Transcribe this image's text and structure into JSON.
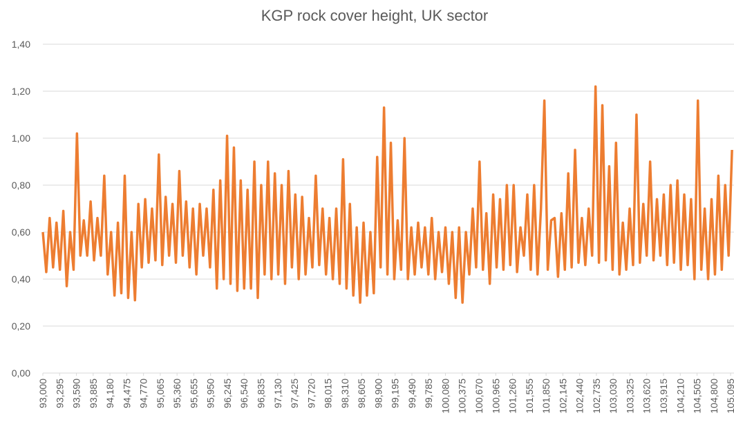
{
  "chart_data": {
    "type": "line",
    "title": "KGP rock cover height, UK sector",
    "x": [
      93000,
      93060,
      93120,
      93180,
      93240,
      93300,
      93360,
      93420,
      93480,
      93540,
      93600,
      93660,
      93720,
      93780,
      93840,
      93900,
      93960,
      94020,
      94080,
      94140,
      94200,
      94260,
      94320,
      94380,
      94440,
      94500,
      94560,
      94620,
      94680,
      94740,
      94800,
      94860,
      94920,
      94980,
      95040,
      95100,
      95160,
      95220,
      95280,
      95340,
      95400,
      95460,
      95520,
      95580,
      95640,
      95700,
      95760,
      95820,
      95880,
      95940,
      96000,
      96060,
      96120,
      96180,
      96240,
      96300,
      96360,
      96420,
      96480,
      96540,
      96600,
      96660,
      96720,
      96780,
      96840,
      96900,
      96960,
      97020,
      97080,
      97140,
      97200,
      97260,
      97320,
      97380,
      97440,
      97500,
      97560,
      97620,
      97680,
      97740,
      97800,
      97860,
      97920,
      97980,
      98040,
      98100,
      98160,
      98220,
      98280,
      98340,
      98400,
      98460,
      98520,
      98580,
      98640,
      98700,
      98760,
      98820,
      98880,
      98940,
      99000,
      99060,
      99120,
      99180,
      99240,
      99300,
      99360,
      99420,
      99480,
      99540,
      99600,
      99660,
      99720,
      99780,
      99840,
      99900,
      99960,
      100020,
      100080,
      100140,
      100200,
      100260,
      100320,
      100380,
      100440,
      100500,
      100560,
      100620,
      100680,
      100740,
      100800,
      100860,
      100920,
      100980,
      101040,
      101100,
      101160,
      101220,
      101280,
      101340,
      101400,
      101460,
      101520,
      101580,
      101640,
      101700,
      101760,
      101820,
      101880,
      101940,
      102000,
      102060,
      102120,
      102180,
      102240,
      102300,
      102360,
      102420,
      102480,
      102540,
      102600,
      102660,
      102720,
      102780,
      102840,
      102900,
      102960,
      103020,
      103080,
      103140,
      103200,
      103260,
      103320,
      103380,
      103440,
      103500,
      103560,
      103620,
      103680,
      103740,
      103800,
      103860,
      103920,
      103980,
      104040,
      104100,
      104160,
      104220,
      104280,
      104340,
      104400,
      104460,
      104520,
      104580,
      104640,
      104700,
      104760,
      104820,
      104880,
      104940,
      105000,
      105060,
      105120
    ],
    "series": [
      {
        "name": "rock cover height",
        "color": "#ed7d31",
        "values": [
          0.6,
          0.43,
          0.66,
          0.45,
          0.64,
          0.44,
          0.69,
          0.37,
          0.6,
          0.44,
          1.02,
          0.5,
          0.65,
          0.5,
          0.73,
          0.48,
          0.66,
          0.5,
          0.84,
          0.42,
          0.6,
          0.33,
          0.64,
          0.34,
          0.84,
          0.32,
          0.6,
          0.31,
          0.72,
          0.45,
          0.74,
          0.47,
          0.7,
          0.48,
          0.93,
          0.46,
          0.75,
          0.5,
          0.72,
          0.47,
          0.86,
          0.5,
          0.73,
          0.45,
          0.7,
          0.42,
          0.72,
          0.5,
          0.7,
          0.45,
          0.78,
          0.36,
          0.82,
          0.4,
          1.01,
          0.38,
          0.96,
          0.35,
          0.82,
          0.36,
          0.78,
          0.36,
          0.9,
          0.32,
          0.8,
          0.42,
          0.9,
          0.4,
          0.85,
          0.42,
          0.8,
          0.38,
          0.86,
          0.45,
          0.76,
          0.4,
          0.75,
          0.42,
          0.66,
          0.45,
          0.84,
          0.46,
          0.7,
          0.42,
          0.66,
          0.4,
          0.7,
          0.38,
          0.91,
          0.36,
          0.72,
          0.33,
          0.62,
          0.3,
          0.64,
          0.33,
          0.6,
          0.34,
          0.92,
          0.45,
          1.13,
          0.42,
          0.98,
          0.4,
          0.65,
          0.44,
          1.0,
          0.4,
          0.62,
          0.42,
          0.64,
          0.45,
          0.62,
          0.42,
          0.66,
          0.4,
          0.6,
          0.43,
          0.62,
          0.38,
          0.6,
          0.32,
          0.62,
          0.3,
          0.6,
          0.42,
          0.7,
          0.45,
          0.9,
          0.44,
          0.68,
          0.38,
          0.76,
          0.45,
          0.74,
          0.44,
          0.8,
          0.46,
          0.8,
          0.43,
          0.62,
          0.5,
          0.76,
          0.44,
          0.8,
          0.42,
          0.7,
          1.16,
          0.44,
          0.65,
          0.66,
          0.41,
          0.68,
          0.44,
          0.85,
          0.45,
          0.95,
          0.47,
          0.66,
          0.46,
          0.7,
          0.5,
          1.22,
          0.47,
          1.14,
          0.48,
          0.88,
          0.44,
          0.98,
          0.42,
          0.64,
          0.44,
          0.7,
          0.46,
          1.1,
          0.47,
          0.72,
          0.5,
          0.9,
          0.48,
          0.74,
          0.5,
          0.76,
          0.46,
          0.8,
          0.47,
          0.82,
          0.44,
          0.76,
          0.46,
          0.74,
          0.4,
          1.16,
          0.44,
          0.7,
          0.4,
          0.74,
          0.42,
          0.84,
          0.44,
          0.8,
          0.5,
          0.95
        ]
      }
    ],
    "xlim": [
      93000,
      105155
    ],
    "xticks": [
      {
        "value": 93000,
        "label": "93,000"
      },
      {
        "value": 93295,
        "label": "93,295"
      },
      {
        "value": 93590,
        "label": "93,590"
      },
      {
        "value": 93885,
        "label": "93,885"
      },
      {
        "value": 94180,
        "label": "94,180"
      },
      {
        "value": 94475,
        "label": "94,475"
      },
      {
        "value": 94770,
        "label": "94,770"
      },
      {
        "value": 95065,
        "label": "95,065"
      },
      {
        "value": 95360,
        "label": "95,360"
      },
      {
        "value": 95655,
        "label": "95,655"
      },
      {
        "value": 95950,
        "label": "95,950"
      },
      {
        "value": 96245,
        "label": "96,245"
      },
      {
        "value": 96540,
        "label": "96,540"
      },
      {
        "value": 96835,
        "label": "96,835"
      },
      {
        "value": 97130,
        "label": "97,130"
      },
      {
        "value": 97425,
        "label": "97,425"
      },
      {
        "value": 97720,
        "label": "97,720"
      },
      {
        "value": 98015,
        "label": "98,015"
      },
      {
        "value": 98310,
        "label": "98,310"
      },
      {
        "value": 98605,
        "label": "98,605"
      },
      {
        "value": 98900,
        "label": "98,900"
      },
      {
        "value": 99195,
        "label": "99,195"
      },
      {
        "value": 99490,
        "label": "99,490"
      },
      {
        "value": 99785,
        "label": "99,785"
      },
      {
        "value": 100080,
        "label": "100,080"
      },
      {
        "value": 100375,
        "label": "100,375"
      },
      {
        "value": 100670,
        "label": "100,670"
      },
      {
        "value": 100965,
        "label": "100,965"
      },
      {
        "value": 101260,
        "label": "101,260"
      },
      {
        "value": 101555,
        "label": "101,555"
      },
      {
        "value": 101850,
        "label": "101,850"
      },
      {
        "value": 102145,
        "label": "102,145"
      },
      {
        "value": 102440,
        "label": "102,440"
      },
      {
        "value": 102735,
        "label": "102,735"
      },
      {
        "value": 103030,
        "label": "103,030"
      },
      {
        "value": 103325,
        "label": "103,325"
      },
      {
        "value": 103620,
        "label": "103,620"
      },
      {
        "value": 103915,
        "label": "103,915"
      },
      {
        "value": 104210,
        "label": "104,210"
      },
      {
        "value": 104505,
        "label": "104,505"
      },
      {
        "value": 104800,
        "label": "104,800"
      },
      {
        "value": 105095,
        "label": "105,095"
      }
    ],
    "ylim": [
      0,
      1.4
    ],
    "yticks": [
      {
        "value": 0,
        "label": "0,00"
      },
      {
        "value": 0.2,
        "label": "0,20"
      },
      {
        "value": 0.4,
        "label": "0,40"
      },
      {
        "value": 0.6,
        "label": "0,60"
      },
      {
        "value": 0.8,
        "label": "0,80"
      },
      {
        "value": 1.0,
        "label": "1,00"
      },
      {
        "value": 1.2,
        "label": "1,20"
      },
      {
        "value": 1.4,
        "label": "1,40"
      }
    ],
    "grid": true
  }
}
